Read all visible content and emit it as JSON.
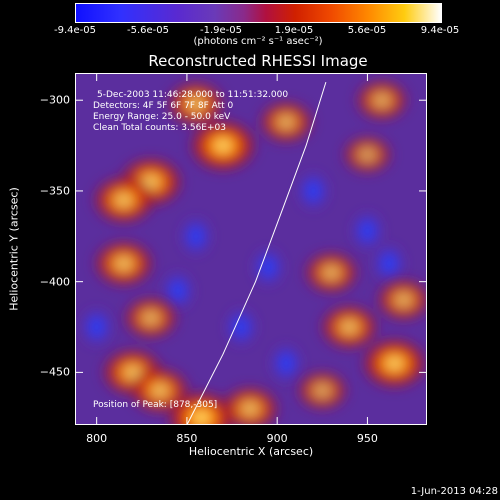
{
  "colorbar": {
    "ticks": [
      "-9.4e-05",
      "-5.6e-05",
      "-1.9e-05",
      "1.9e-05",
      "5.6e-05",
      "9.4e-05"
    ],
    "unit": "(photons cm⁻² s⁻¹ asec⁻²)"
  },
  "header": {
    "date_line": "5-Dec-2003 11:46:28.000 to 11:51:32.000",
    "detectors_line": "Detectors: 4F 5F 6F 7F 8F   Att 0",
    "energy_line": "Energy Range: 25.0 - 50.0 keV",
    "clean_line": "Clean     Total counts: 3.56E+03",
    "peak_line": "Position of Peak: [878,-305]"
  },
  "footer": {
    "date": "1-Jun-2013 04:28"
  },
  "chart_data": {
    "type": "heatmap",
    "title": "Reconstructed RHESSI Image",
    "xlabel": "Heliocentric X (arcsec)",
    "ylabel": "Heliocentric Y (arcsec)",
    "xlim": [
      788,
      983
    ],
    "ylim": [
      -479,
      -285
    ],
    "xticks": [
      800,
      850,
      900,
      950
    ],
    "yticks": [
      -300,
      -350,
      -400,
      -450
    ],
    "xtick_labels": [
      "800",
      "850",
      "900",
      "950"
    ],
    "ytick_labels": [
      "−300",
      "−350",
      "−400",
      "−450"
    ],
    "colorbar_range": [
      -9.4e-05,
      9.4e-05
    ],
    "peak_position": [
      878,
      -305
    ],
    "limb_curve": [
      [
        850,
        -479
      ],
      [
        870,
        -440
      ],
      [
        888,
        -400
      ],
      [
        903,
        -360
      ],
      [
        916,
        -325
      ],
      [
        927,
        -290
      ]
    ],
    "blobs": [
      {
        "x": 830,
        "y": -345,
        "level": 0.85
      },
      {
        "x": 870,
        "y": -325,
        "level": 0.95
      },
      {
        "x": 855,
        "y": -302,
        "level": 0.7
      },
      {
        "x": 815,
        "y": -355,
        "level": 0.8
      },
      {
        "x": 905,
        "y": -312,
        "level": 0.6
      },
      {
        "x": 958,
        "y": -300,
        "level": 0.55
      },
      {
        "x": 815,
        "y": -390,
        "level": 0.75
      },
      {
        "x": 830,
        "y": -420,
        "level": 0.6
      },
      {
        "x": 820,
        "y": -450,
        "level": 0.8
      },
      {
        "x": 835,
        "y": -460,
        "level": 0.75
      },
      {
        "x": 930,
        "y": -395,
        "level": 0.6
      },
      {
        "x": 940,
        "y": -425,
        "level": 0.7
      },
      {
        "x": 965,
        "y": -445,
        "level": 0.9
      },
      {
        "x": 970,
        "y": -410,
        "level": 0.6
      },
      {
        "x": 858,
        "y": -475,
        "level": 1.0
      },
      {
        "x": 885,
        "y": -470,
        "level": 0.7
      },
      {
        "x": 925,
        "y": -460,
        "level": 0.5
      },
      {
        "x": 950,
        "y": -330,
        "level": 0.45
      }
    ],
    "minima": [
      {
        "x": 800,
        "y": -425
      },
      {
        "x": 855,
        "y": -375
      },
      {
        "x": 895,
        "y": -392
      },
      {
        "x": 920,
        "y": -350
      },
      {
        "x": 950,
        "y": -372
      },
      {
        "x": 880,
        "y": -425
      },
      {
        "x": 845,
        "y": -405
      },
      {
        "x": 905,
        "y": -445
      },
      {
        "x": 962,
        "y": -390
      }
    ]
  }
}
